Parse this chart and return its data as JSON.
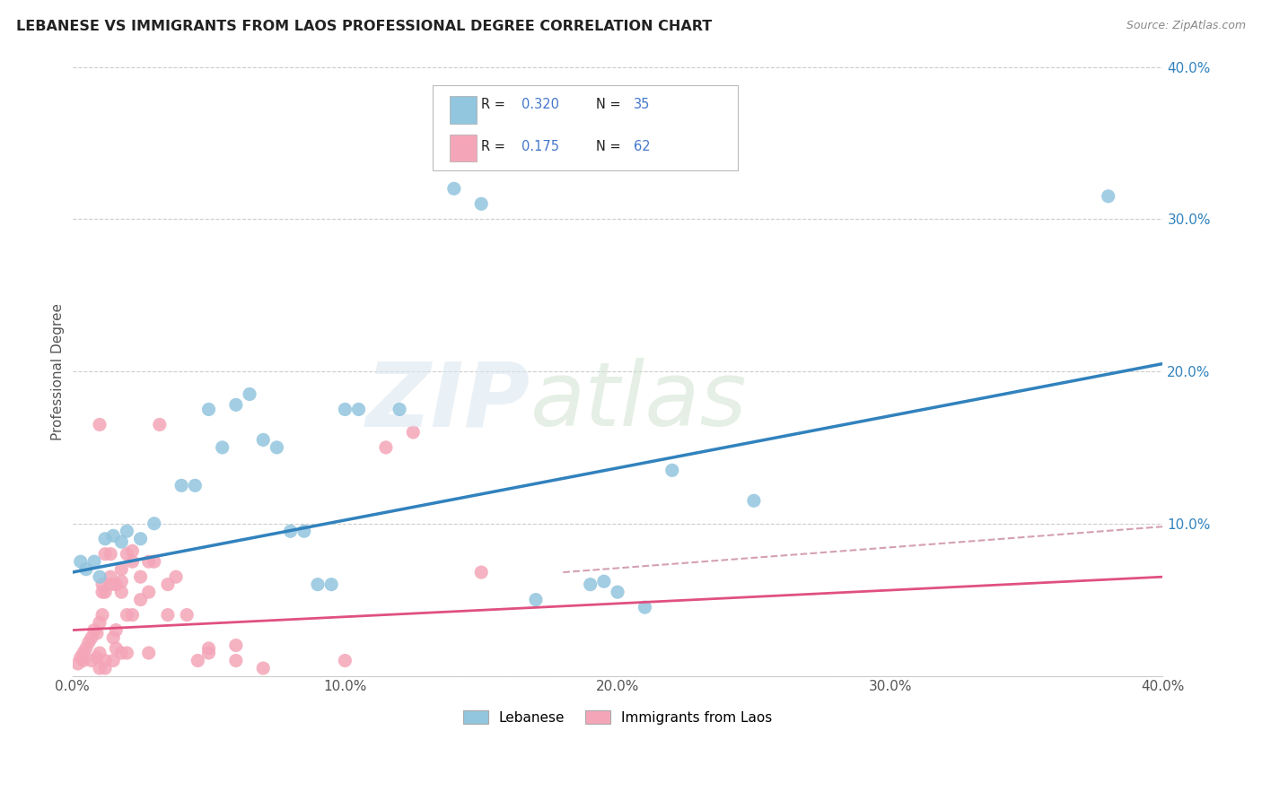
{
  "title": "LEBANESE VS IMMIGRANTS FROM LAOS PROFESSIONAL DEGREE CORRELATION CHART",
  "source": "Source: ZipAtlas.com",
  "ylabel": "Professional Degree",
  "xlim": [
    0.0,
    0.4
  ],
  "ylim": [
    0.0,
    0.4
  ],
  "xtick_labels": [
    "0.0%",
    "10.0%",
    "20.0%",
    "30.0%",
    "40.0%"
  ],
  "xtick_vals": [
    0.0,
    0.1,
    0.2,
    0.3,
    0.4
  ],
  "ytick_labels": [
    "",
    "10.0%",
    "20.0%",
    "30.0%",
    "40.0%"
  ],
  "ytick_vals": [
    0.0,
    0.1,
    0.2,
    0.3,
    0.4
  ],
  "blue_color": "#92c5de",
  "pink_color": "#f4a6b8",
  "blue_line_color": "#3182bd",
  "pink_line_color": "#e05080",
  "pink_dashed_color": "#d4a0b5",
  "legend_color": "#4477cc",
  "blue_line": {
    "x0": 0.0,
    "y0": 0.068,
    "x1": 0.4,
    "y1": 0.205
  },
  "pink_solid_line": {
    "x0": 0.0,
    "y0": 0.03,
    "x1": 0.4,
    "y1": 0.065
  },
  "pink_dashed_line": {
    "x0": 0.18,
    "y0": 0.068,
    "x1": 0.4,
    "y1": 0.098
  },
  "blue_scatter": [
    [
      0.003,
      0.075
    ],
    [
      0.005,
      0.07
    ],
    [
      0.008,
      0.075
    ],
    [
      0.01,
      0.065
    ],
    [
      0.012,
      0.09
    ],
    [
      0.015,
      0.092
    ],
    [
      0.018,
      0.088
    ],
    [
      0.02,
      0.095
    ],
    [
      0.025,
      0.09
    ],
    [
      0.03,
      0.1
    ],
    [
      0.04,
      0.125
    ],
    [
      0.045,
      0.125
    ],
    [
      0.05,
      0.175
    ],
    [
      0.055,
      0.15
    ],
    [
      0.06,
      0.178
    ],
    [
      0.065,
      0.185
    ],
    [
      0.07,
      0.155
    ],
    [
      0.075,
      0.15
    ],
    [
      0.08,
      0.095
    ],
    [
      0.085,
      0.095
    ],
    [
      0.09,
      0.06
    ],
    [
      0.095,
      0.06
    ],
    [
      0.1,
      0.175
    ],
    [
      0.105,
      0.175
    ],
    [
      0.12,
      0.175
    ],
    [
      0.14,
      0.32
    ],
    [
      0.15,
      0.31
    ],
    [
      0.17,
      0.05
    ],
    [
      0.19,
      0.06
    ],
    [
      0.195,
      0.062
    ],
    [
      0.2,
      0.055
    ],
    [
      0.21,
      0.045
    ],
    [
      0.22,
      0.135
    ],
    [
      0.25,
      0.115
    ],
    [
      0.38,
      0.315
    ]
  ],
  "pink_scatter": [
    [
      0.002,
      0.008
    ],
    [
      0.003,
      0.012
    ],
    [
      0.004,
      0.015
    ],
    [
      0.004,
      0.01
    ],
    [
      0.005,
      0.018
    ],
    [
      0.006,
      0.022
    ],
    [
      0.007,
      0.025
    ],
    [
      0.007,
      0.01
    ],
    [
      0.008,
      0.03
    ],
    [
      0.009,
      0.028
    ],
    [
      0.009,
      0.012
    ],
    [
      0.01,
      0.035
    ],
    [
      0.01,
      0.015
    ],
    [
      0.01,
      0.005
    ],
    [
      0.011,
      0.04
    ],
    [
      0.011,
      0.06
    ],
    [
      0.011,
      0.055
    ],
    [
      0.012,
      0.08
    ],
    [
      0.012,
      0.055
    ],
    [
      0.012,
      0.01
    ],
    [
      0.012,
      0.005
    ],
    [
      0.014,
      0.065
    ],
    [
      0.014,
      0.08
    ],
    [
      0.014,
      0.06
    ],
    [
      0.015,
      0.025
    ],
    [
      0.015,
      0.01
    ],
    [
      0.016,
      0.06
    ],
    [
      0.016,
      0.03
    ],
    [
      0.016,
      0.018
    ],
    [
      0.018,
      0.062
    ],
    [
      0.018,
      0.07
    ],
    [
      0.018,
      0.055
    ],
    [
      0.018,
      0.015
    ],
    [
      0.02,
      0.08
    ],
    [
      0.02,
      0.04
    ],
    [
      0.02,
      0.015
    ],
    [
      0.022,
      0.082
    ],
    [
      0.022,
      0.075
    ],
    [
      0.022,
      0.04
    ],
    [
      0.025,
      0.065
    ],
    [
      0.025,
      0.05
    ],
    [
      0.028,
      0.075
    ],
    [
      0.028,
      0.055
    ],
    [
      0.028,
      0.015
    ],
    [
      0.03,
      0.075
    ],
    [
      0.032,
      0.165
    ],
    [
      0.035,
      0.06
    ],
    [
      0.035,
      0.04
    ],
    [
      0.038,
      0.065
    ],
    [
      0.042,
      0.04
    ],
    [
      0.046,
      0.01
    ],
    [
      0.05,
      0.018
    ],
    [
      0.05,
      0.015
    ],
    [
      0.06,
      0.02
    ],
    [
      0.06,
      0.01
    ],
    [
      0.07,
      0.005
    ],
    [
      0.1,
      0.01
    ],
    [
      0.115,
      0.15
    ],
    [
      0.125,
      0.16
    ],
    [
      0.15,
      0.068
    ],
    [
      0.01,
      0.165
    ]
  ]
}
